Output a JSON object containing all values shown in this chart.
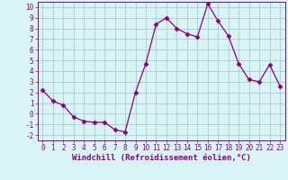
{
  "x": [
    0,
    1,
    2,
    3,
    4,
    5,
    6,
    7,
    8,
    9,
    10,
    11,
    12,
    13,
    14,
    15,
    16,
    17,
    18,
    19,
    20,
    21,
    22,
    23
  ],
  "y": [
    2.2,
    1.2,
    0.8,
    -0.3,
    -0.7,
    -0.8,
    -0.8,
    -1.5,
    -1.7,
    2.0,
    4.7,
    8.4,
    9.0,
    8.0,
    7.5,
    7.2,
    10.3,
    8.7,
    7.3,
    4.7,
    3.2,
    3.0,
    4.6,
    2.6
  ],
  "line_color": "#880088",
  "marker": "D",
  "marker_size": 2.5,
  "bg_color": "#d8f4f4",
  "grid_color": "#aacccc",
  "xlabel": "Windchill (Refroidissement éolien,°C)",
  "xlim": [
    -0.5,
    23.5
  ],
  "ylim": [
    -2.5,
    10.5
  ],
  "yticks": [
    -2,
    -1,
    0,
    1,
    2,
    3,
    4,
    5,
    6,
    7,
    8,
    9,
    10
  ],
  "xticks": [
    0,
    1,
    2,
    3,
    4,
    5,
    6,
    7,
    8,
    9,
    10,
    11,
    12,
    13,
    14,
    15,
    16,
    17,
    18,
    19,
    20,
    21,
    22,
    23
  ],
  "tick_color": "#880088",
  "spine_color": "#880088",
  "label_fontsize": 6.5,
  "tick_fontsize": 5.5,
  "linewidth": 0.9
}
